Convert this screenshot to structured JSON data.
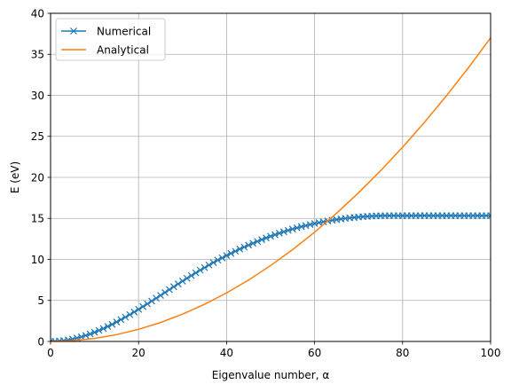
{
  "chart_data": {
    "type": "line",
    "xlabel": "Eigenvalue number, α",
    "ylabel": "E (eV)",
    "xlim": [
      0,
      100
    ],
    "ylim": [
      0,
      40
    ],
    "xticks": [
      "0",
      "20",
      "40",
      "60",
      "80",
      "100"
    ],
    "yticks": [
      "0",
      "5",
      "10",
      "15",
      "20",
      "25",
      "30",
      "35",
      "40"
    ],
    "grid": true,
    "legend_position": "top-left",
    "series": [
      {
        "name": "Numerical",
        "marker": "x",
        "color": "#1f77b4",
        "x": [
          0,
          1,
          2,
          3,
          4,
          5,
          6,
          7,
          8,
          9,
          10,
          11,
          12,
          13,
          14,
          15,
          16,
          17,
          18,
          19,
          20,
          21,
          22,
          23,
          24,
          25,
          26,
          27,
          28,
          29,
          30,
          31,
          32,
          33,
          34,
          35,
          36,
          37,
          38,
          39,
          40,
          41,
          42,
          43,
          44,
          45,
          46,
          47,
          48,
          49,
          50,
          51,
          52,
          53,
          54,
          55,
          56,
          57,
          58,
          59,
          60,
          61,
          62,
          63,
          64,
          65,
          66,
          67,
          68,
          69,
          70,
          71,
          72,
          73,
          74,
          75,
          76,
          77,
          78,
          79,
          80,
          81,
          82,
          83,
          84,
          85,
          86,
          87,
          88,
          89,
          90,
          91,
          92,
          93,
          94,
          95,
          96,
          97,
          98,
          99,
          100
        ],
        "y": [
          0.0,
          0.01,
          0.05,
          0.11,
          0.19,
          0.29,
          0.42,
          0.56,
          0.73,
          0.91,
          1.12,
          1.34,
          1.57,
          1.82,
          2.09,
          2.37,
          2.66,
          2.96,
          3.27,
          3.59,
          3.91,
          4.25,
          4.58,
          4.93,
          5.27,
          5.62,
          5.97,
          6.32,
          6.67,
          7.01,
          7.36,
          7.7,
          8.03,
          8.36,
          8.69,
          9.0,
          9.31,
          9.62,
          9.91,
          10.19,
          10.47,
          10.74,
          11.0,
          11.26,
          11.5,
          11.74,
          11.97,
          12.19,
          12.41,
          12.62,
          12.82,
          13.01,
          13.2,
          13.37,
          13.54,
          13.7,
          13.85,
          13.99,
          14.12,
          14.25,
          14.37,
          14.48,
          14.58,
          14.68,
          14.77,
          14.85,
          14.93,
          15.0,
          15.06,
          15.12,
          15.17,
          15.21,
          15.25,
          15.28,
          15.3,
          15.32,
          15.33,
          15.33,
          15.33,
          15.33,
          15.33,
          15.33,
          15.33,
          15.33,
          15.33,
          15.33,
          15.33,
          15.33,
          15.33,
          15.33,
          15.33,
          15.33,
          15.33,
          15.33,
          15.33,
          15.33,
          15.33,
          15.33,
          15.33,
          15.33,
          15.33
        ]
      },
      {
        "name": "Analytical",
        "marker": "none",
        "color": "#ff7f0e",
        "x": [
          0,
          5,
          10,
          15,
          20,
          25,
          30,
          35,
          40,
          45,
          50,
          55,
          60,
          65,
          70,
          75,
          80,
          85,
          90,
          95,
          100
        ],
        "y": [
          0.0,
          0.09,
          0.37,
          0.83,
          1.48,
          2.31,
          3.33,
          4.53,
          5.92,
          7.49,
          9.25,
          11.19,
          13.32,
          15.63,
          18.13,
          20.81,
          23.68,
          26.73,
          29.97,
          33.39,
          37.0
        ]
      }
    ]
  }
}
